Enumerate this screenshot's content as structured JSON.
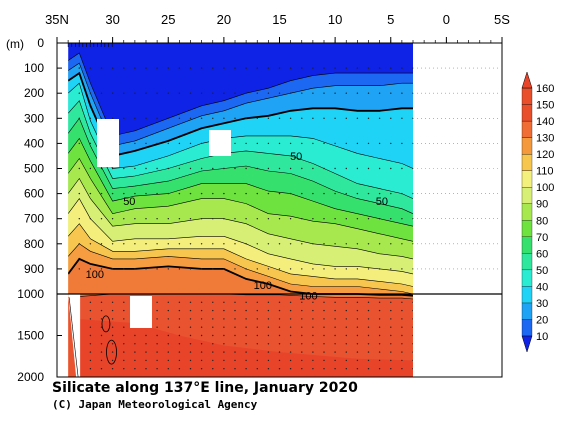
{
  "chart_data": {
    "type": "contour",
    "title": "Silicate along 137°E line, January 2020",
    "credit": "(C) Japan Meteorological Agency",
    "x_ticks": [
      "35N",
      "30",
      "25",
      "20",
      "15",
      "10",
      "5",
      "0",
      "5S"
    ],
    "y_unit_label": "(m)",
    "y_ticks": [
      "0",
      "100",
      "200",
      "300",
      "400",
      "500",
      "600",
      "700",
      "800",
      "900",
      "1000",
      "1500",
      "2000"
    ],
    "x_range": [
      35,
      -5
    ],
    "y_range": [
      0,
      2000
    ],
    "y_break_at": 1000,
    "colorbar": {
      "ticks": [
        "10",
        "20",
        "30",
        "40",
        "50",
        "60",
        "70",
        "80",
        "90",
        "100",
        "110",
        "120",
        "130",
        "140",
        "150",
        "160"
      ],
      "colors": [
        "#0f23e6",
        "#1d68f2",
        "#1fa3f5",
        "#1fd3f7",
        "#2aecd2",
        "#2fe89e",
        "#35e06c",
        "#6ee23f",
        "#a8e84f",
        "#d7ef74",
        "#f4f07e",
        "#f7c64c",
        "#f59a3c",
        "#f06e35",
        "#e84f2a"
      ]
    },
    "contour_labels": [
      {
        "text": "50",
        "lat": 28.5,
        "depth": 630
      },
      {
        "text": "50",
        "lat": 13.5,
        "depth": 450
      },
      {
        "text": "50",
        "lat": 5.8,
        "depth": 630
      },
      {
        "text": "100",
        "lat": 31.6,
        "depth": 920
      },
      {
        "text": "100",
        "lat": 16.5,
        "depth": 965
      },
      {
        "text": "100",
        "lat": 12.4,
        "depth": 1020
      }
    ],
    "bands": [
      {
        "color": "#ea5330",
        "top": [
          [
            34,
            1040
          ],
          [
            32,
            1020
          ],
          [
            30,
            1000
          ],
          [
            28,
            1000
          ],
          [
            25,
            1000
          ],
          [
            22,
            1000
          ],
          [
            20,
            1000
          ],
          [
            18,
            1010
          ],
          [
            15,
            1010
          ],
          [
            12,
            1030
          ],
          [
            10,
            1040
          ],
          [
            8,
            1040
          ],
          [
            6,
            1050
          ],
          [
            4,
            1050
          ],
          [
            3,
            1060
          ]
        ]
      },
      {
        "color": "#f07a38",
        "top": [
          [
            34,
            920
          ],
          [
            33,
            860
          ],
          [
            32,
            880
          ],
          [
            30,
            900
          ],
          [
            28,
            900
          ],
          [
            25,
            890
          ],
          [
            22,
            900
          ],
          [
            20,
            900
          ],
          [
            18,
            940
          ],
          [
            16,
            960
          ],
          [
            14,
            990
          ],
          [
            12,
            1000
          ],
          [
            10,
            1000
          ],
          [
            8,
            1000
          ],
          [
            6,
            1010
          ],
          [
            4,
            1010
          ],
          [
            3,
            1020
          ]
        ]
      },
      {
        "color": "#f59d40",
        "top": [
          [
            34,
            850
          ],
          [
            33,
            800
          ],
          [
            32,
            830
          ],
          [
            30,
            860
          ],
          [
            28,
            860
          ],
          [
            25,
            850
          ],
          [
            22,
            860
          ],
          [
            20,
            860
          ],
          [
            18,
            900
          ],
          [
            16,
            930
          ],
          [
            14,
            960
          ],
          [
            12,
            970
          ],
          [
            10,
            970
          ],
          [
            8,
            970
          ],
          [
            6,
            980
          ],
          [
            4,
            990
          ],
          [
            3,
            1000
          ]
        ]
      },
      {
        "color": "#f7c64e",
        "top": [
          [
            34,
            770
          ],
          [
            33,
            720
          ],
          [
            32,
            780
          ],
          [
            30,
            830
          ],
          [
            28,
            830
          ],
          [
            25,
            820
          ],
          [
            22,
            820
          ],
          [
            20,
            820
          ],
          [
            18,
            860
          ],
          [
            16,
            890
          ],
          [
            14,
            920
          ],
          [
            12,
            930
          ],
          [
            10,
            940
          ],
          [
            8,
            940
          ],
          [
            6,
            950
          ],
          [
            4,
            960
          ],
          [
            3,
            970
          ]
        ]
      },
      {
        "color": "#f4ef7c",
        "top": [
          [
            34,
            680
          ],
          [
            33,
            620
          ],
          [
            32,
            700
          ],
          [
            30,
            790
          ],
          [
            28,
            780
          ],
          [
            25,
            780
          ],
          [
            22,
            770
          ],
          [
            20,
            770
          ],
          [
            18,
            800
          ],
          [
            16,
            840
          ],
          [
            14,
            860
          ],
          [
            12,
            880
          ],
          [
            10,
            890
          ],
          [
            8,
            890
          ],
          [
            6,
            900
          ],
          [
            4,
            910
          ],
          [
            3,
            920
          ]
        ]
      },
      {
        "color": "#d7ef74",
        "top": [
          [
            34,
            600
          ],
          [
            33,
            540
          ],
          [
            32,
            620
          ],
          [
            30,
            730
          ],
          [
            28,
            720
          ],
          [
            25,
            720
          ],
          [
            22,
            700
          ],
          [
            20,
            700
          ],
          [
            18,
            720
          ],
          [
            16,
            760
          ],
          [
            14,
            780
          ],
          [
            12,
            800
          ],
          [
            10,
            810
          ],
          [
            8,
            820
          ],
          [
            6,
            840
          ],
          [
            4,
            850
          ],
          [
            3,
            860
          ]
        ]
      },
      {
        "color": "#a8e84f",
        "top": [
          [
            34,
            520
          ],
          [
            33,
            460
          ],
          [
            32,
            540
          ],
          [
            30,
            680
          ],
          [
            28,
            660
          ],
          [
            25,
            650
          ],
          [
            22,
            620
          ],
          [
            20,
            620
          ],
          [
            18,
            640
          ],
          [
            16,
            680
          ],
          [
            14,
            690
          ],
          [
            12,
            710
          ],
          [
            10,
            720
          ],
          [
            8,
            740
          ],
          [
            6,
            760
          ],
          [
            4,
            780
          ],
          [
            3,
            790
          ]
        ]
      },
      {
        "color": "#6ee23f",
        "top": [
          [
            34,
            440
          ],
          [
            33,
            380
          ],
          [
            32,
            470
          ],
          [
            30,
            630
          ],
          [
            28,
            610
          ],
          [
            25,
            600
          ],
          [
            22,
            560
          ],
          [
            20,
            560
          ],
          [
            18,
            560
          ],
          [
            16,
            590
          ],
          [
            14,
            600
          ],
          [
            12,
            630
          ],
          [
            10,
            660
          ],
          [
            8,
            680
          ],
          [
            6,
            700
          ],
          [
            4,
            720
          ],
          [
            3,
            730
          ]
        ]
      },
      {
        "color": "#35e06c",
        "top": [
          [
            34,
            360
          ],
          [
            33,
            300
          ],
          [
            32,
            410
          ],
          [
            30,
            580
          ],
          [
            28,
            570
          ],
          [
            25,
            550
          ],
          [
            22,
            510
          ],
          [
            20,
            500
          ],
          [
            18,
            490
          ],
          [
            16,
            510
          ],
          [
            14,
            520
          ],
          [
            12,
            550
          ],
          [
            10,
            590
          ],
          [
            8,
            620
          ],
          [
            6,
            640
          ],
          [
            4,
            660
          ],
          [
            3,
            680
          ]
        ]
      },
      {
        "color": "#2fe89e",
        "top": [
          [
            34,
            280
          ],
          [
            33,
            230
          ],
          [
            32,
            360
          ],
          [
            30,
            540
          ],
          [
            28,
            530
          ],
          [
            25,
            500
          ],
          [
            22,
            460
          ],
          [
            20,
            440
          ],
          [
            18,
            430
          ],
          [
            16,
            440
          ],
          [
            14,
            450
          ],
          [
            12,
            480
          ],
          [
            10,
            520
          ],
          [
            8,
            560
          ],
          [
            6,
            580
          ],
          [
            4,
            600
          ],
          [
            3,
            620
          ]
        ]
      },
      {
        "color": "#2aecd2",
        "top": [
          [
            34,
            200
          ],
          [
            33,
            160
          ],
          [
            32,
            310
          ],
          [
            30,
            500
          ],
          [
            28,
            490
          ],
          [
            25,
            450
          ],
          [
            22,
            400
          ],
          [
            20,
            380
          ],
          [
            18,
            370
          ],
          [
            16,
            370
          ],
          [
            14,
            370
          ],
          [
            12,
            380
          ],
          [
            10,
            410
          ],
          [
            8,
            440
          ],
          [
            6,
            460
          ],
          [
            4,
            480
          ],
          [
            3,
            500
          ]
        ]
      },
      {
        "color": "#1fd3f7",
        "top": [
          [
            34,
            150
          ],
          [
            33,
            120
          ],
          [
            32,
            250
          ],
          [
            30,
            450
          ],
          [
            28,
            430
          ],
          [
            25,
            390
          ],
          [
            22,
            340
          ],
          [
            20,
            320
          ],
          [
            18,
            300
          ],
          [
            16,
            290
          ],
          [
            14,
            270
          ],
          [
            12,
            260
          ],
          [
            10,
            260
          ],
          [
            8,
            270
          ],
          [
            6,
            270
          ],
          [
            4,
            260
          ],
          [
            3,
            260
          ]
        ]
      },
      {
        "color": "#1fa3f5",
        "top": [
          [
            34,
            110
          ],
          [
            33,
            80
          ],
          [
            32,
            200
          ],
          [
            30,
            410
          ],
          [
            28,
            390
          ],
          [
            25,
            340
          ],
          [
            22,
            290
          ],
          [
            20,
            270
          ],
          [
            18,
            240
          ],
          [
            16,
            220
          ],
          [
            14,
            200
          ],
          [
            12,
            180
          ],
          [
            10,
            170
          ],
          [
            8,
            170
          ],
          [
            6,
            170
          ],
          [
            4,
            160
          ],
          [
            3,
            160
          ]
        ]
      },
      {
        "color": "#1d68f2",
        "top": [
          [
            34,
            70
          ],
          [
            33,
            40
          ],
          [
            32,
            160
          ],
          [
            30,
            370
          ],
          [
            28,
            350
          ],
          [
            25,
            300
          ],
          [
            22,
            250
          ],
          [
            20,
            230
          ],
          [
            18,
            200
          ],
          [
            16,
            180
          ],
          [
            14,
            150
          ],
          [
            12,
            130
          ],
          [
            10,
            120
          ],
          [
            8,
            120
          ],
          [
            6,
            120
          ],
          [
            4,
            120
          ],
          [
            3,
            120
          ]
        ]
      }
    ]
  }
}
